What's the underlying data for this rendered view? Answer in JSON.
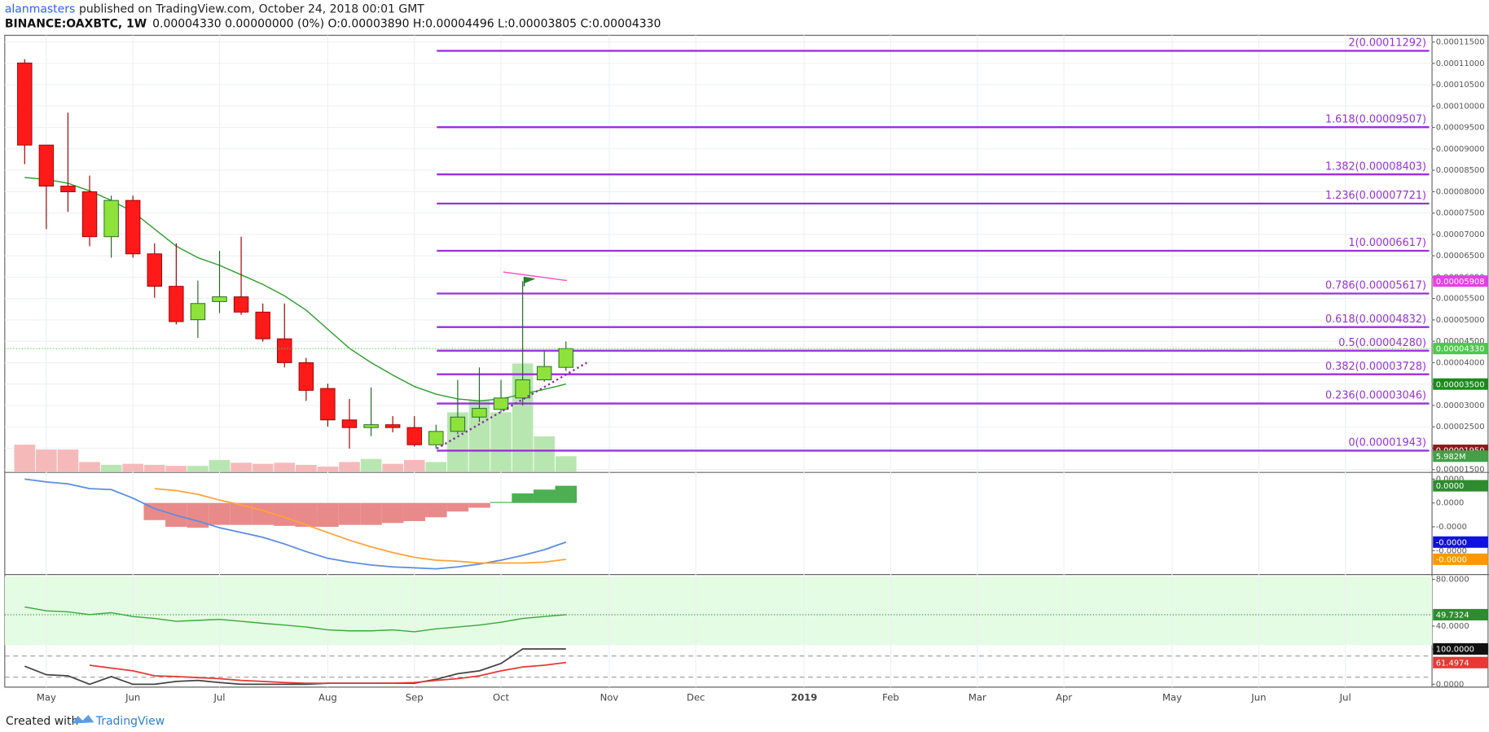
{
  "header": {
    "author": "alanmasters",
    "published": "published on TradingView.com, October 24, 2018 00:01 GMT",
    "symbol": "BINANCE:OAXBTC, 1W",
    "quote": "0.00004330 0.00000000 (0%) O:0.00003890 H:0.00004496 L:0.00003805 C:0.00004330"
  },
  "footer": {
    "prefix": "Created with",
    "brand": "TradingView"
  },
  "chart_data": {
    "type": "candlestick",
    "categories": [
      null,
      "May",
      null,
      null,
      null,
      "Jun",
      null,
      null,
      null,
      "Jul",
      null,
      null,
      null,
      null,
      "Aug",
      null,
      null,
      null,
      "Sep",
      null,
      null,
      null,
      "Oct",
      null,
      null,
      null,
      null,
      "Nov",
      null,
      null,
      null,
      "Dec",
      null,
      null,
      null,
      null,
      "2019",
      null,
      null,
      null,
      "Feb",
      null,
      null,
      null,
      "Mar",
      null,
      null,
      null,
      "Apr",
      null,
      null,
      null,
      null,
      "May",
      null,
      null,
      null,
      "Jun",
      null,
      null,
      null,
      "Jul",
      null,
      null,
      null,
      null
    ],
    "open": [
      0.00011009,
      9.089e-05,
      8.129e-05,
      7.996e-05,
      6.946e-05,
      7.795e-05,
      6.545e-05,
      5.786e-05,
      5.004e-05,
      5.429e-05,
      5.54e-05,
      5.183e-05,
      4.558e-05,
      4e-05,
      3.397e-05,
      2.661e-05,
      2.482e-05,
      2.549e-05,
      2.482e-05,
      2.08e-05,
      2.393e-05,
      2.728e-05,
      2.906e-05,
      3.174e-05,
      3.598e-05,
      3.89e-05,
      null,
      null,
      null,
      null,
      null,
      null,
      null,
      null,
      null,
      null,
      null,
      null,
      null,
      null,
      null,
      null,
      null,
      null,
      null,
      null,
      null,
      null,
      null,
      null,
      null,
      null,
      null,
      null,
      null,
      null,
      null,
      null,
      null,
      null,
      null,
      null,
      null,
      null,
      null,
      null
    ],
    "high": [
      0.00011098,
      9.089e-05,
      9.848e-05,
      8.375e-05,
      7.906e-05,
      7.906e-05,
      6.79e-05,
      6.79e-05,
      5.92e-05,
      6.612e-05,
      6.946e-05,
      5.384e-05,
      5.384e-05,
      4.112e-05,
      3.509e-05,
      3.152e-05,
      3.42e-05,
      2.75e-05,
      2.75e-05,
      2.549e-05,
      3.598e-05,
      3.888e-05,
      3.598e-05,
      5.908e-05,
      4.268e-05,
      4.496e-05,
      null,
      null,
      null,
      null,
      null,
      null,
      null,
      null,
      null,
      null,
      null,
      null,
      null,
      null,
      null,
      null,
      null,
      null,
      null,
      null,
      null,
      null,
      null,
      null,
      null,
      null,
      null,
      null,
      null,
      null,
      null,
      null,
      null,
      null,
      null,
      null,
      null,
      null,
      null,
      null
    ],
    "low": [
      8.643e-05,
      7.125e-05,
      7.527e-05,
      6.723e-05,
      6.455e-05,
      6.455e-05,
      5.518e-05,
      4.893e-05,
      4.58e-05,
      5.161e-05,
      5.116e-05,
      4.491e-05,
      3.888e-05,
      3.107e-05,
      2.504e-05,
      1.991e-05,
      2.281e-05,
      2.371e-05,
      2.036e-05,
      1.991e-05,
      2.326e-05,
      2.616e-05,
      2.839e-05,
      2.996e-05,
      3.554e-05,
      3.805e-05,
      null,
      null,
      null,
      null,
      null,
      null,
      null,
      null,
      null,
      null,
      null,
      null,
      null,
      null,
      null,
      null,
      null,
      null,
      null,
      null,
      null,
      null,
      null,
      null,
      null,
      null,
      null,
      null,
      null,
      null,
      null,
      null,
      null,
      null,
      null,
      null,
      null,
      null,
      null,
      null
    ],
    "close": [
      9.089e-05,
      8.129e-05,
      7.996e-05,
      6.946e-05,
      7.795e-05,
      6.545e-05,
      5.786e-05,
      4.96e-05,
      5.384e-05,
      5.54e-05,
      5.183e-05,
      4.558e-05,
      4e-05,
      3.353e-05,
      2.661e-05,
      2.482e-05,
      2.549e-05,
      2.482e-05,
      2.08e-05,
      2.393e-05,
      2.728e-05,
      2.929e-05,
      3.174e-05,
      3.598e-05,
      3.911e-05,
      4.33e-05,
      null,
      null,
      null,
      null,
      null,
      null,
      null,
      null,
      null,
      null,
      null,
      null,
      null,
      null,
      null,
      null,
      null,
      null,
      null,
      null,
      null,
      null,
      null,
      null,
      null,
      null,
      null,
      null,
      null,
      null,
      null,
      null,
      null,
      null,
      null,
      null,
      null,
      null,
      null,
      null
    ],
    "volume": [
      10500000,
      8600000,
      8600000,
      3700000,
      2600000,
      3000000,
      2600000,
      2200000,
      2200000,
      4500000,
      3400000,
      3000000,
      3400000,
      2600000,
      1900000,
      3700000,
      4900000,
      3000000,
      4500000,
      3700000,
      23200000,
      28000000,
      23200000,
      42300000,
      13800000,
      5982000,
      null,
      null,
      null,
      null,
      null,
      null,
      null,
      null,
      null,
      null,
      null,
      null,
      null,
      null,
      null,
      null,
      null,
      null,
      null,
      null,
      null,
      null,
      null,
      null,
      null,
      null,
      null,
      null,
      null,
      null,
      null,
      null,
      null,
      null,
      null,
      null,
      null,
      null,
      null,
      null
    ],
    "ma": [
      8.33e-05,
      8.286e-05,
      8.196e-05,
      8.018e-05,
      7.795e-05,
      7.527e-05,
      7.125e-05,
      6.723e-05,
      6.455e-05,
      6.277e-05,
      6.054e-05,
      5.83e-05,
      5.562e-05,
      5.228e-05,
      4.781e-05,
      4.335e-05,
      4e-05,
      3.71e-05,
      3.442e-05,
      3.263e-05,
      3.152e-05,
      3.107e-05,
      3.152e-05,
      3.263e-05,
      3.375e-05,
      3.5e-05,
      null,
      null,
      null,
      null,
      null,
      null,
      null,
      null,
      null,
      null,
      null,
      null,
      null,
      null,
      null,
      null,
      null,
      null,
      null,
      null,
      null,
      null,
      null,
      null,
      null,
      null,
      null,
      null,
      null,
      null,
      null,
      null,
      null,
      null,
      null,
      null,
      null,
      null,
      null,
      null
    ],
    "up_color": "#8ee23b",
    "up_edge": "#1f6b1f",
    "down_color": "#ff1a1a",
    "down_edge": "#9b0000",
    "up_volume_color": "#b8e6b0",
    "down_volume_color": "#f6b9b9",
    "ma_color": "#2e9e2e",
    "ylim": [
      1.456e-05,
      0.00011656
    ],
    "yticks": [
      {
        "value": 1.5e-05,
        "label": "0.00001500"
      },
      {
        "value": 2e-05,
        "label": "0.00002000"
      },
      {
        "value": 2.5e-05,
        "label": "0.00002500"
      },
      {
        "value": 3e-05,
        "label": "0.00003000"
      },
      {
        "value": 3.5e-05,
        "label": "0.00003500"
      },
      {
        "value": 4e-05,
        "label": "0.00004000"
      },
      {
        "value": 4.5e-05,
        "label": "0.00004500"
      },
      {
        "value": 5e-05,
        "label": "0.00005000"
      },
      {
        "value": 5.5e-05,
        "label": "0.00005500"
      },
      {
        "value": 6e-05,
        "label": "0.00006000"
      },
      {
        "value": 6.5e-05,
        "label": "0.00006500"
      },
      {
        "value": 7e-05,
        "label": "0.00007000"
      },
      {
        "value": 7.5e-05,
        "label": "0.00007500"
      },
      {
        "value": 8e-05,
        "label": "0.00008000"
      },
      {
        "value": 8.5e-05,
        "label": "0.00008500"
      },
      {
        "value": 9e-05,
        "label": "0.00009000"
      },
      {
        "value": 9.5e-05,
        "label": "0.00009500"
      },
      {
        "value": 0.0001,
        "label": "0.00010000"
      },
      {
        "value": 0.000105,
        "label": "0.00010500"
      },
      {
        "value": 0.00011,
        "label": "0.00011000"
      },
      {
        "value": 0.000115,
        "label": "0.00011500"
      }
    ],
    "grid": true,
    "volume_ylim": [
      0,
      171000000
    ],
    "fib_color": "#9b30d9",
    "fib_levels": [
      {
        "value": 0.00011292,
        "label": "2(0.00011292)"
      },
      {
        "value": 9.507e-05,
        "label": "1.618(0.00009507)"
      },
      {
        "value": 8.403e-05,
        "label": "1.382(0.00008403)"
      },
      {
        "value": 7.721e-05,
        "label": "1.236(0.00007721)"
      },
      {
        "value": 6.617e-05,
        "label": "1(0.00006617)"
      },
      {
        "value": 5.617e-05,
        "label": "0.786(0.00005617)"
      },
      {
        "value": 4.832e-05,
        "label": "0.618(0.00004832)"
      },
      {
        "value": 4.28e-05,
        "label": "0.5(0.00004280)"
      },
      {
        "value": 3.728e-05,
        "label": "0.382(0.00003728)"
      },
      {
        "value": 3.046e-05,
        "label": "0.236(0.00003046)"
      },
      {
        "value": 1.943e-05,
        "label": "0(0.00001943)"
      }
    ],
    "price_badges": [
      {
        "value": 5.908e-05,
        "label": "0.00005908",
        "color": "#e83ee8"
      },
      {
        "value": 4.33e-05,
        "label": "0.00004330",
        "color": "#4cc94c"
      },
      {
        "value": 3.5e-05,
        "label": "0.00003500",
        "color": "#1b8a1b"
      },
      {
        "value": 1.95e-05,
        "label": "0.00001950",
        "color": "#8b1a1a"
      }
    ],
    "volume_badge": {
      "value": 5982000,
      "label": "5.982M",
      "color": "#43a047"
    },
    "macd": {
      "ylim": [
        -1.48e-05,
        6.2e-06
      ],
      "yticks": [
        {
          "value": 5e-06,
          "label": "0.0000"
        },
        {
          "value": 0,
          "label": "0.0000"
        },
        {
          "value": -5e-06,
          "label": "-0.0000"
        },
        {
          "value": -1e-05,
          "label": "-0.0000"
        }
      ],
      "histogram": [
        null,
        null,
        null,
        null,
        null,
        null,
        -3.6e-06,
        -5e-06,
        -5.2e-06,
        -4.6e-06,
        -4.6e-06,
        -4.6e-06,
        -4.8e-06,
        -5e-06,
        -5e-06,
        -4.6e-06,
        -4.6e-06,
        -4.2e-06,
        -3.8e-06,
        -3e-06,
        -1.8e-06,
        -1e-06,
        2e-07,
        2e-06,
        2.8e-06,
        3.6e-06,
        null,
        null,
        null,
        null,
        null,
        null,
        null,
        null,
        null,
        null,
        null,
        null,
        null,
        null,
        null,
        null,
        null,
        null,
        null,
        null,
        null,
        null,
        null,
        null,
        null,
        null,
        null,
        null,
        null,
        null,
        null,
        null,
        null,
        null,
        null,
        null,
        null,
        null,
        null,
        null
      ],
      "macd": [
        5e-06,
        4.4e-06,
        4e-06,
        3e-06,
        2.8e-06,
        1e-06,
        -1.2e-06,
        -2.6e-06,
        -3.8e-06,
        -5.2e-06,
        -6.2e-06,
        -7.2e-06,
        -8.6e-06,
        -1.02e-05,
        -1.16e-05,
        -1.24e-05,
        -1.3e-05,
        -1.34e-05,
        -1.36e-05,
        -1.38e-05,
        -1.34e-05,
        -1.28e-05,
        -1.2e-05,
        -1.1e-05,
        -9.8e-06,
        -8.2e-06,
        null,
        null,
        null,
        null,
        null,
        null,
        null,
        null,
        null,
        null,
        null,
        null,
        null,
        null,
        null,
        null,
        null,
        null,
        null,
        null,
        null,
        null,
        null,
        null,
        null,
        null,
        null,
        null,
        null,
        null,
        null,
        null,
        null,
        null,
        null,
        null,
        null,
        null,
        null,
        null
      ],
      "signal": [
        null,
        null,
        null,
        null,
        null,
        null,
        3e-06,
        2.6e-06,
        1.8e-06,
        6e-07,
        -4e-07,
        -1.6e-06,
        -3e-06,
        -4.6e-06,
        -6.2e-06,
        -7.8e-06,
        -9.2e-06,
        -1.04e-05,
        -1.14e-05,
        -1.2e-05,
        -1.22e-05,
        -1.26e-05,
        -1.26e-05,
        -1.26e-05,
        -1.24e-05,
        -1.18e-05,
        null,
        null,
        null,
        null,
        null,
        null,
        null,
        null,
        null,
        null,
        null,
        null,
        null,
        null,
        null,
        null,
        null,
        null,
        null,
        null,
        null,
        null,
        null,
        null,
        null,
        null,
        null,
        null,
        null,
        null,
        null,
        null,
        null,
        null,
        null,
        null,
        null,
        null,
        null,
        null
      ],
      "negative_color": "#e88a8a",
      "positive_color": "#4caf50",
      "macd_color": "#5b8de0",
      "signal_color": "#ffa33a",
      "badges": [
        {
          "value": 3.6e-06,
          "label": "0.0000",
          "color": "#2e8b2e"
        },
        {
          "value": -8.2e-06,
          "label": "-0.0000",
          "color": "#1010e0"
        },
        {
          "value": -1.18e-05,
          "label": "-0.0000",
          "color": "#ff9800"
        }
      ]
    },
    "rsi": {
      "ylim": [
        23.67,
        83.27
      ],
      "yticks": [
        {
          "value": 80,
          "label": "80.0000"
        },
        {
          "value": 40,
          "label": "40.0000"
        }
      ],
      "values": [
        56.3,
        53.1,
        52.2,
        49.8,
        51.4,
        48.2,
        46.5,
        44.1,
        44.9,
        45.7,
        44.1,
        42.4,
        40.8,
        39.2,
        36.7,
        35.9,
        35.9,
        36.7,
        35.1,
        37.6,
        39.2,
        40.8,
        43.3,
        46.5,
        48.2,
        49.73,
        null,
        null,
        null,
        null,
        null,
        null,
        null,
        null,
        null,
        null,
        null,
        null,
        null,
        null,
        null,
        null,
        null,
        null,
        null,
        null,
        null,
        null,
        null,
        null,
        null,
        null,
        null,
        null,
        null,
        null,
        null,
        null,
        null,
        null,
        null,
        null,
        null,
        null,
        null,
        null
      ],
      "color": "#3aa83a",
      "background": "#e4fbe4",
      "badges": [
        {
          "value": 49.7324,
          "label": "49.7324",
          "color": "#2e8b2e"
        }
      ]
    },
    "stoch": {
      "ylim": [
        -8.1,
        108.1
      ],
      "yticks": [
        {
          "value": 100,
          "label": "100.0000"
        },
        {
          "value": 0,
          "label": "0.0000"
        }
      ],
      "levels": [
        80,
        20
      ],
      "k": [
        51,
        27,
        24,
        0,
        22,
        0,
        0,
        8,
        11,
        5,
        0,
        0,
        0,
        0,
        3,
        3,
        3,
        3,
        3,
        14,
        30,
        38,
        59,
        100,
        100,
        100,
        null,
        null,
        null,
        null,
        null,
        null,
        null,
        null,
        null,
        null,
        null,
        null,
        null,
        null,
        null,
        null,
        null,
        null,
        null,
        null,
        null,
        null,
        null,
        null,
        null,
        null,
        null,
        null,
        null,
        null,
        null,
        null,
        null,
        null,
        null,
        null,
        null,
        null,
        null,
        null
      ],
      "d": [
        null,
        null,
        null,
        54,
        46,
        38,
        24,
        22,
        19,
        16,
        11,
        8,
        5,
        3,
        3,
        3,
        3,
        3,
        5,
        11,
        16,
        24,
        38,
        49,
        54,
        61.5,
        null,
        null,
        null,
        null,
        null,
        null,
        null,
        null,
        null,
        null,
        null,
        null,
        null,
        null,
        null,
        null,
        null,
        null,
        null,
        null,
        null,
        null,
        null,
        null,
        null,
        null,
        null,
        null,
        null,
        null,
        null,
        null,
        null,
        null,
        null,
        null,
        null,
        null,
        null,
        null
      ],
      "k_color": "#444444",
      "d_color": "#e53935",
      "badges": [
        {
          "value": 100,
          "label": "100.0000",
          "color": "#111111"
        },
        {
          "value": 61.4974,
          "label": "61.4974",
          "color": "#e53935"
        }
      ]
    }
  }
}
